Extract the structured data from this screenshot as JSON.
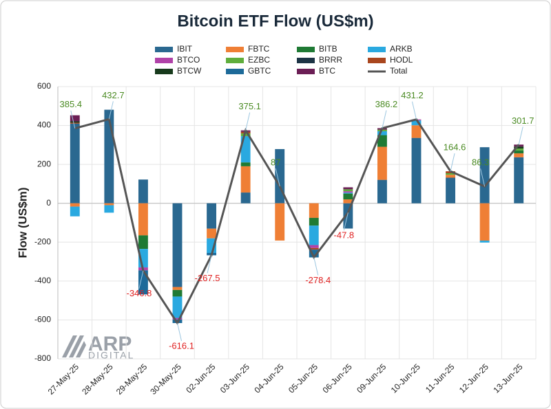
{
  "chart_data": {
    "type": "bar",
    "stacked": true,
    "title": "Bitcoin ETF Flow (US$m)",
    "y_label": "Flow (US$m)",
    "watermark": "ARP",
    "watermark_sub": "DIGITAL",
    "categories": [
      "27-May-25",
      "28-May-25",
      "29-May-25",
      "30-May-25",
      "02-Jun-25",
      "03-Jun-25",
      "04-Jun-25",
      "05-Jun-25",
      "06-Jun-25",
      "09-Jun-25",
      "10-Jun-25",
      "11-Jun-25",
      "12-Jun-25",
      "13-Jun-25"
    ],
    "ylim": [
      -800,
      600
    ],
    "yticks": [
      -800,
      -600,
      -400,
      -200,
      0,
      200,
      400,
      600
    ],
    "grid": true,
    "series": [
      {
        "name": "IBIT",
        "color": "#2a6890",
        "values": [
          409.6,
          481.1,
          122.1,
          -430.8,
          -130.5,
          55.3,
          278.7,
          0,
          -130,
          120.5,
          336.2,
          131.6,
          288.3,
          236.7
        ]
      },
      {
        "name": "FBTC",
        "color": "#ef7f35",
        "values": [
          -17.2,
          -10,
          -165,
          -15,
          -50,
          135,
          -191.7,
          -75,
          20,
          170,
          65,
          15,
          -192,
          20
        ]
      },
      {
        "name": "BITB",
        "color": "#1f7a34",
        "values": [
          0,
          0,
          -70,
          -34,
          0,
          20,
          0,
          -40,
          30,
          60,
          0,
          0,
          0,
          15
        ]
      },
      {
        "name": "ARKB",
        "color": "#2aa9e0",
        "values": [
          -50,
          -38.4,
          -95,
          -110,
          -75,
          135,
          0,
          -100,
          5,
          20,
          25,
          0,
          -10,
          0
        ]
      },
      {
        "name": "BTCO",
        "color": "#b042a8",
        "values": [
          0,
          0,
          -15,
          -8,
          0,
          0,
          0,
          -15,
          7,
          0,
          5,
          0,
          0,
          0
        ]
      },
      {
        "name": "EZBC",
        "color": "#5fae3c",
        "values": [
          0,
          0,
          0,
          0,
          0,
          14,
          0,
          0,
          10,
          8,
          0,
          8,
          0,
          10
        ]
      },
      {
        "name": "BRRR",
        "color": "#1c3445",
        "values": [
          0,
          0,
          0,
          0,
          0,
          0,
          0,
          0,
          0,
          0,
          0,
          0,
          0,
          0
        ]
      },
      {
        "name": "HODL",
        "color": "#a9461e",
        "values": [
          5,
          0,
          0,
          0,
          0,
          8,
          0,
          -8.4,
          0,
          0,
          0,
          10,
          0,
          0
        ]
      },
      {
        "name": "BTCW",
        "color": "#173a1c",
        "values": [
          7,
          0,
          0,
          0,
          0,
          0,
          0,
          0,
          0,
          0,
          0,
          0,
          0,
          10
        ]
      },
      {
        "name": "GBTC",
        "color": "#1d6a99",
        "values": [
          0,
          0,
          -123.9,
          -18.3,
          -12,
          0,
          0,
          -40,
          0,
          0,
          0,
          0,
          0,
          0
        ]
      },
      {
        "name": "BTC",
        "color": "#6b1e55",
        "values": [
          31,
          0,
          0,
          0,
          0,
          7.8,
          0,
          0,
          10.2,
          7.7,
          0,
          0,
          0,
          10
        ]
      },
      {
        "name": "Total",
        "type": "line",
        "color": "#555555",
        "values": [
          385.4,
          432.7,
          -346.8,
          -616.1,
          -267.5,
          375.1,
          87,
          -278.4,
          -47.8,
          386.2,
          431.2,
          164.6,
          86.3,
          301.7
        ]
      }
    ],
    "label_colors": {
      "positive": "#4a8a22",
      "negative": "#e02020"
    }
  }
}
